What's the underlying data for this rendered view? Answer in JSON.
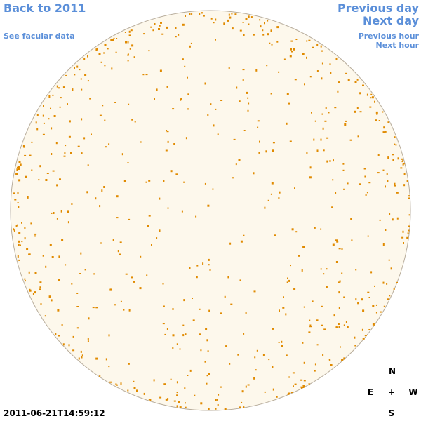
{
  "nav": {
    "back": "Back to 2011",
    "facular": "See facular data",
    "prev_day": "Previous day",
    "next_day": "Next day",
    "prev_hour": "Previous hour",
    "next_hour": "Next hour"
  },
  "timestamp": "2011-06-21T14:59:12",
  "compass": {
    "north": "N",
    "east": "E",
    "center": "+",
    "west": "W",
    "south": "S"
  }
}
